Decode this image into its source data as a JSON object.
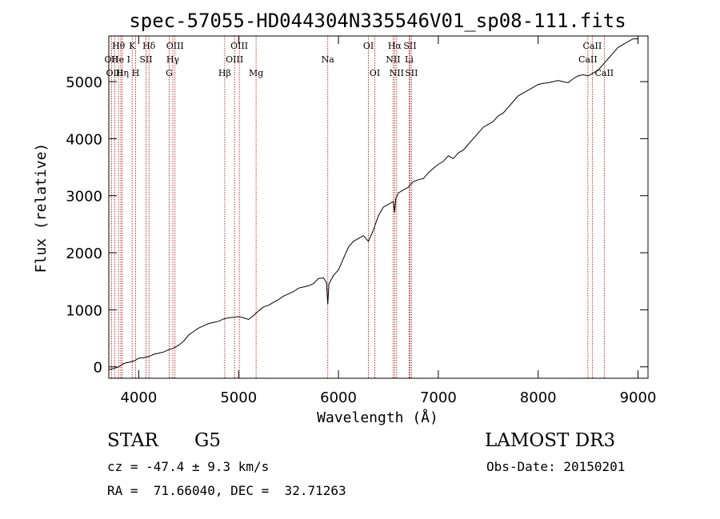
{
  "chart_data": {
    "type": "line",
    "title": "spec-57055-HD044304N335546V01_sp08-111.fits",
    "xlabel": "Wavelength (Å)",
    "ylabel": "Flux (relative)",
    "xlim": [
      3700,
      9100
    ],
    "ylim": [
      -200,
      5800
    ],
    "x_ticks": [
      4000,
      5000,
      6000,
      7000,
      8000,
      9000
    ],
    "y_ticks": [
      0,
      1000,
      2000,
      3000,
      4000,
      5000
    ],
    "series": [
      {
        "name": "flux",
        "x": [
          3700,
          3750,
          3800,
          3850,
          3900,
          3950,
          4000,
          4050,
          4100,
          4150,
          4200,
          4250,
          4300,
          4350,
          4400,
          4450,
          4500,
          4550,
          4600,
          4650,
          4700,
          4750,
          4800,
          4850,
          4900,
          4950,
          5000,
          5050,
          5100,
          5150,
          5200,
          5250,
          5300,
          5350,
          5400,
          5450,
          5500,
          5550,
          5600,
          5650,
          5700,
          5750,
          5800,
          5850,
          5880,
          5893,
          5905,
          5950,
          6000,
          6050,
          6100,
          6150,
          6200,
          6250,
          6300,
          6350,
          6400,
          6450,
          6500,
          6550,
          6563,
          6575,
          6600,
          6650,
          6700,
          6750,
          6800,
          6850,
          6900,
          6950,
          7000,
          7050,
          7100,
          7150,
          7200,
          7250,
          7300,
          7350,
          7400,
          7450,
          7500,
          7550,
          7600,
          7650,
          7700,
          7750,
          7800,
          7850,
          7900,
          7950,
          8000,
          8050,
          8100,
          8150,
          8200,
          8250,
          8300,
          8350,
          8400,
          8450,
          8500,
          8550,
          8600,
          8650,
          8700,
          8750,
          8800,
          8850,
          8900,
          8950,
          9000
        ],
        "y": [
          -50,
          -30,
          0,
          60,
          80,
          100,
          150,
          160,
          180,
          220,
          240,
          260,
          300,
          330,
          380,
          450,
          560,
          620,
          680,
          720,
          760,
          780,
          800,
          840,
          860,
          870,
          880,
          860,
          830,
          900,
          980,
          1050,
          1080,
          1130,
          1180,
          1240,
          1280,
          1320,
          1380,
          1400,
          1420,
          1460,
          1550,
          1560,
          1480,
          1100,
          1460,
          1600,
          1700,
          1900,
          2100,
          2200,
          2250,
          2300,
          2200,
          2400,
          2650,
          2800,
          2850,
          2900,
          2700,
          2950,
          3050,
          3100,
          3150,
          3250,
          3280,
          3300,
          3400,
          3480,
          3550,
          3600,
          3700,
          3650,
          3750,
          3800,
          3900,
          4000,
          4100,
          4200,
          4250,
          4300,
          4400,
          4450,
          4550,
          4650,
          4750,
          4800,
          4850,
          4900,
          4950,
          4970,
          4980,
          5000,
          5020,
          5000,
          4980,
          5050,
          5100,
          5120,
          5100,
          5150,
          5200,
          5300,
          5400,
          5500,
          5600,
          5650,
          5700,
          5750,
          5750
        ]
      }
    ],
    "lines": [
      {
        "label": "Hθ",
        "x": 3797,
        "row": 1
      },
      {
        "label": "OII",
        "x": 3727,
        "row": 2
      },
      {
        "label": "OIII",
        "x": 3760,
        "row": 3
      },
      {
        "label": "He I",
        "x": 3820,
        "row": 2
      },
      {
        "label": "Hη",
        "x": 3835,
        "row": 3
      },
      {
        "label": "K",
        "x": 3934,
        "row": 1
      },
      {
        "label": "SII",
        "x": 4072,
        "row": 2
      },
      {
        "label": "H",
        "x": 3969,
        "row": 3
      },
      {
        "label": "Hδ",
        "x": 4102,
        "row": 1
      },
      {
        "label": "OIII",
        "x": 4363,
        "row": 1
      },
      {
        "label": "Hγ",
        "x": 4341,
        "row": 2
      },
      {
        "label": "G",
        "x": 4305,
        "row": 3
      },
      {
        "label": "OIII",
        "x": 5007,
        "row": 1
      },
      {
        "label": "OIII",
        "x": 4959,
        "row": 2
      },
      {
        "label": "Hβ",
        "x": 4861,
        "row": 3
      },
      {
        "label": "Mg",
        "x": 5175,
        "row": 3
      },
      {
        "label": "Na",
        "x": 5893,
        "row": 2
      },
      {
        "label": "OI",
        "x": 6300,
        "row": 1
      },
      {
        "label": "OI",
        "x": 6364,
        "row": 3
      },
      {
        "label": "Hα",
        "x": 6563,
        "row": 1
      },
      {
        "label": "SII",
        "x": 6716,
        "row": 1
      },
      {
        "label": "NII",
        "x": 6548,
        "row": 2
      },
      {
        "label": "Li",
        "x": 6708,
        "row": 2
      },
      {
        "label": "NII",
        "x": 6583,
        "row": 3
      },
      {
        "label": "SII",
        "x": 6731,
        "row": 3
      },
      {
        "label": "CaII",
        "x": 8542,
        "row": 1
      },
      {
        "label": "CaII",
        "x": 8498,
        "row": 2
      },
      {
        "label": "CaII",
        "x": 8662,
        "row": 3
      }
    ]
  },
  "info": {
    "object_class": "STAR",
    "subclass": "G5",
    "survey": "LAMOST DR3",
    "cz": "cz = -47.4 ± 9.3 km/s",
    "obs_date": "Obs-Date: 20150201",
    "coords": "RA =  71.66040, DEC =  32.71263"
  }
}
